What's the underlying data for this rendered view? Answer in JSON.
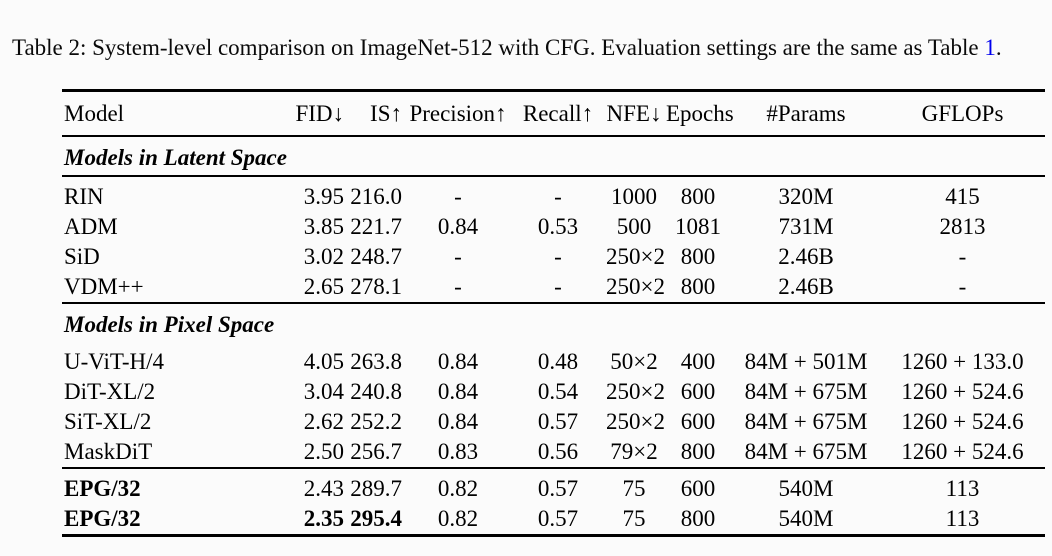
{
  "caption": {
    "before": "Table 2: System-level comparison on ImageNet-512 with CFG. Evaluation settings are the same as Table ",
    "link": "1",
    "after": "."
  },
  "colors": {
    "text": "#000000",
    "link_blue": "#0000ee",
    "background": "#fbfbfb"
  },
  "chart_data": {
    "type": "table",
    "title": "System-level comparison on ImageNet-512 with CFG",
    "columns": [
      {
        "label": "Model",
        "align": "left"
      },
      {
        "label": "FID↓",
        "align": "right"
      },
      {
        "label": "IS↑",
        "align": "right"
      },
      {
        "label": "Precision↑",
        "align": "center"
      },
      {
        "label": "Recall↑",
        "align": "center"
      },
      {
        "label": "NFE↓",
        "align": "center"
      },
      {
        "label": "Epochs",
        "align": "center"
      },
      {
        "label": "#Params",
        "align": "center"
      },
      {
        "label": "GFLOPs",
        "align": "center"
      }
    ],
    "sections": [
      {
        "title": "Models in Latent Space",
        "rule_below_title": true,
        "rows": [
          {
            "cells": [
              "RIN",
              "3.95",
              "216.0",
              "-",
              "-",
              "1000",
              "800",
              "320M",
              "415"
            ],
            "bold": []
          },
          {
            "cells": [
              "ADM",
              "3.85",
              "221.7",
              "0.84",
              "0.53",
              "500",
              "1081",
              "731M",
              "2813"
            ],
            "bold": []
          },
          {
            "cells": [
              "SiD",
              "3.02",
              "248.7",
              "-",
              "-",
              "250×2",
              "800",
              "2.46B",
              "-"
            ],
            "bold": []
          },
          {
            "cells": [
              "VDM++",
              "2.65",
              "278.1",
              "-",
              "-",
              "250×2",
              "800",
              "2.46B",
              "-"
            ],
            "bold": []
          }
        ]
      },
      {
        "title": "Models in Pixel Space",
        "rule_below_title": false,
        "rows": [
          {
            "cells": [
              "U-ViT-H/4",
              "4.05",
              "263.8",
              "0.84",
              "0.48",
              "50×2",
              "400",
              "84M + 501M",
              "1260 + 133.0"
            ],
            "bold": []
          },
          {
            "cells": [
              "DiT-XL/2",
              "3.04",
              "240.8",
              "0.84",
              "0.54",
              "250×2",
              "600",
              "84M + 675M",
              "1260 + 524.6"
            ],
            "bold": []
          },
          {
            "cells": [
              "SiT-XL/2",
              "2.62",
              "252.2",
              "0.84",
              "0.57",
              "250×2",
              "600",
              "84M + 675M",
              "1260 + 524.6"
            ],
            "bold": []
          },
          {
            "cells": [
              "MaskDiT",
              "2.50",
              "256.7",
              "0.83",
              "0.56",
              "79×2",
              "800",
              "84M + 675M",
              "1260 + 524.6"
            ],
            "bold": []
          }
        ]
      },
      {
        "title": null,
        "rule_below_title": false,
        "rows": [
          {
            "cells": [
              "EPG/32",
              "2.43",
              "289.7",
              "0.82",
              "0.57",
              "75",
              "600",
              "540M",
              "113"
            ],
            "bold": [
              0
            ]
          },
          {
            "cells": [
              "EPG/32",
              "2.35",
              "295.4",
              "0.82",
              "0.57",
              "75",
              "800",
              "540M",
              "113"
            ],
            "bold": [
              0,
              1,
              2
            ]
          }
        ]
      }
    ]
  }
}
